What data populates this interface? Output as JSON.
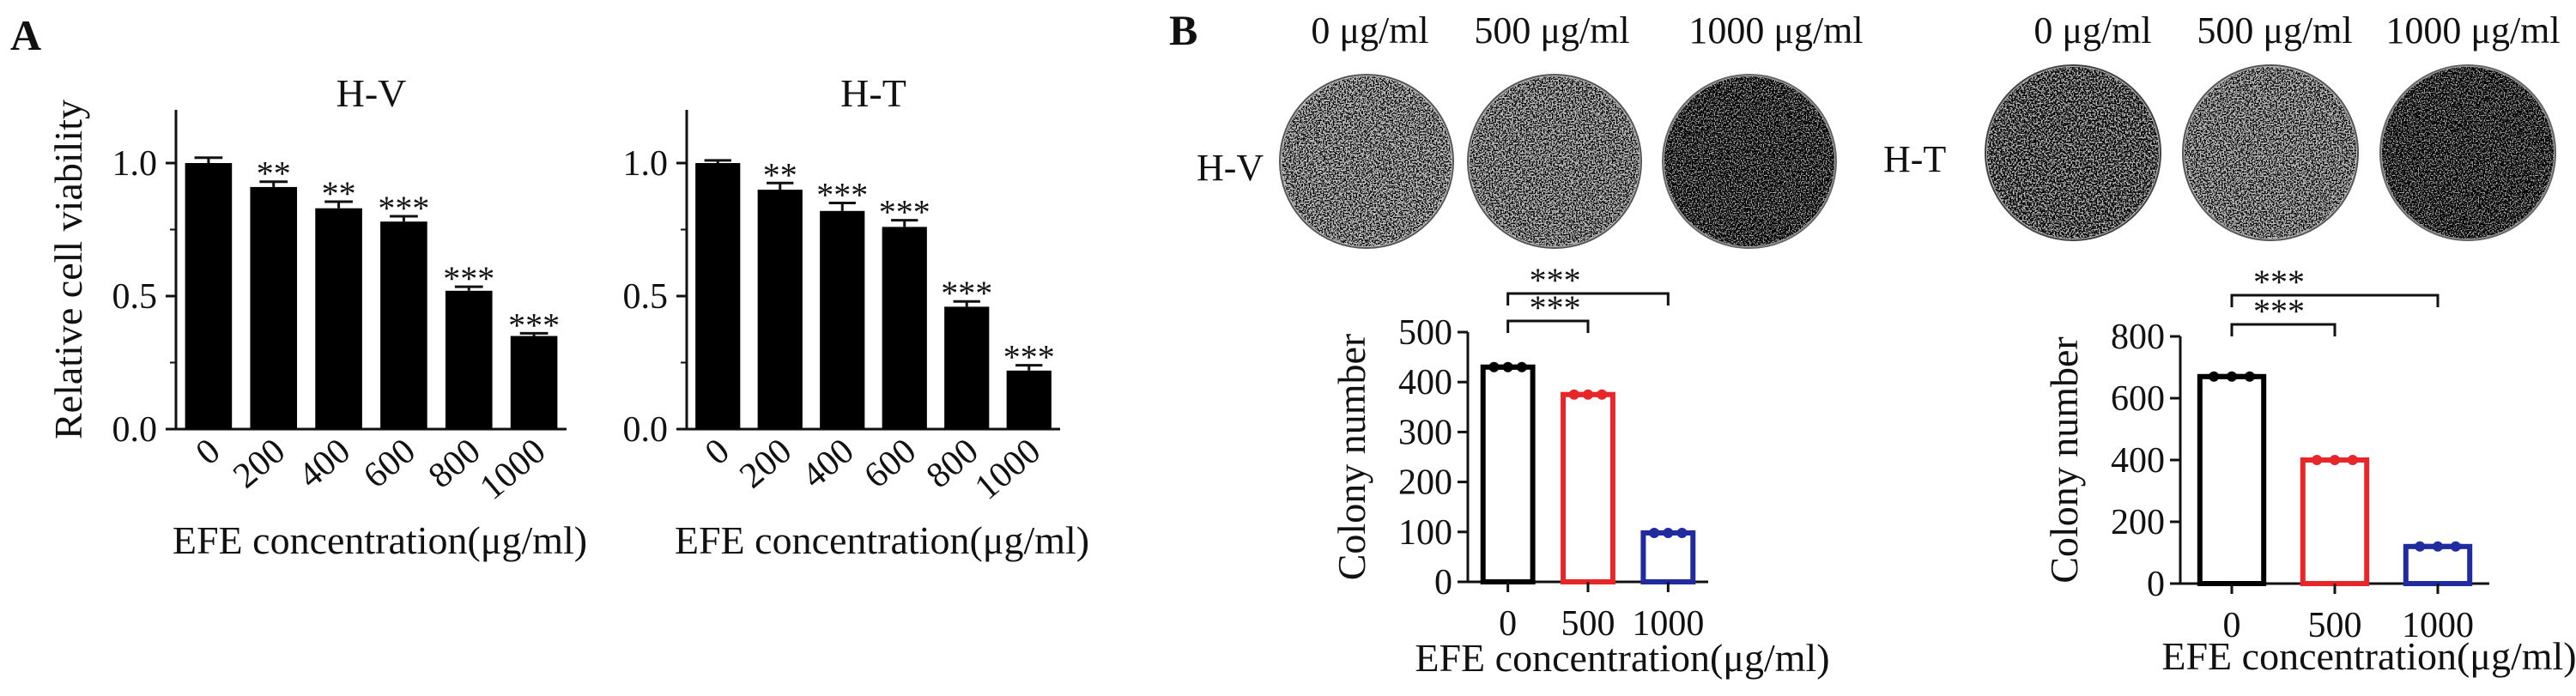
{
  "panels": {
    "a": "A",
    "b": "B"
  },
  "chart_data": [
    {
      "id": "viability-hv",
      "type": "bar",
      "title": "H-V",
      "categories": [
        "0",
        "200",
        "400",
        "600",
        "800",
        "1000"
      ],
      "values": [
        1.0,
        0.91,
        0.83,
        0.78,
        0.52,
        0.35
      ],
      "errors": [
        0.02,
        0.02,
        0.025,
        0.02,
        0.015,
        0.01
      ],
      "significance": [
        "",
        "**",
        "**",
        "***",
        "***",
        "***"
      ],
      "ylim": [
        0,
        1.2
      ],
      "yticks": [
        0.0,
        0.5,
        1.0
      ],
      "ytick_labels": [
        "0.0",
        "0.5",
        "1.0"
      ],
      "xlabel": "EFE concentration(μg/ml)",
      "ylabel": "Relative cell viability",
      "color": "#000000"
    },
    {
      "id": "viability-ht",
      "type": "bar",
      "title": "H-T",
      "categories": [
        "0",
        "200",
        "400",
        "600",
        "800",
        "1000"
      ],
      "values": [
        1.0,
        0.9,
        0.82,
        0.76,
        0.46,
        0.22
      ],
      "errors": [
        0.01,
        0.025,
        0.03,
        0.025,
        0.02,
        0.02
      ],
      "significance": [
        "",
        "**",
        "***",
        "***",
        "***",
        "***"
      ],
      "ylim": [
        0,
        1.2
      ],
      "yticks": [
        0.0,
        0.5,
        1.0
      ],
      "ytick_labels": [
        "0.0",
        "0.5",
        "1.0"
      ],
      "xlabel": "EFE concentration(μg/ml)",
      "ylabel": "",
      "color": "#000000"
    },
    {
      "id": "colony-hv",
      "type": "bar",
      "title": "",
      "row_label": "H-V",
      "plate_labels": [
        "0 μg/ml",
        "500 μg/ml",
        "1000 μg/ml"
      ],
      "categories": [
        "0",
        "500",
        "1000"
      ],
      "values": [
        430,
        375,
        98
      ],
      "bar_colors": [
        "#000000",
        "#e8262a",
        "#1f2b9e"
      ],
      "comparisons": [
        {
          "from": 0,
          "to": 1,
          "label": "***"
        },
        {
          "from": 0,
          "to": 2,
          "label": "***"
        }
      ],
      "ylim": [
        0,
        500
      ],
      "yticks": [
        0,
        100,
        200,
        300,
        400,
        500
      ],
      "xlabel": "EFE concentration(μg/ml)",
      "ylabel": "Colony number"
    },
    {
      "id": "colony-ht",
      "type": "bar",
      "title": "",
      "row_label": "H-T",
      "plate_labels": [
        "0 μg/ml",
        "500 μg/ml",
        "1000 μg/ml"
      ],
      "categories": [
        "0",
        "500",
        "1000"
      ],
      "values": [
        670,
        400,
        120
      ],
      "bar_colors": [
        "#000000",
        "#e8262a",
        "#1f2b9e"
      ],
      "comparisons": [
        {
          "from": 0,
          "to": 1,
          "label": "***"
        },
        {
          "from": 0,
          "to": 2,
          "label": "***"
        }
      ],
      "ylim": [
        0,
        800
      ],
      "yticks": [
        0,
        200,
        400,
        600,
        800
      ],
      "xlabel": "EFE concentration(μg/ml)",
      "ylabel": "Colony number"
    }
  ]
}
